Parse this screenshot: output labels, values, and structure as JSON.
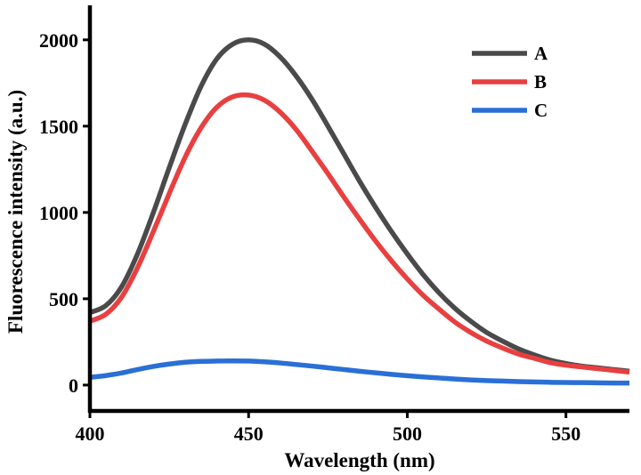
{
  "chart_data": {
    "type": "line",
    "title": "",
    "xlabel": "Wavelength (nm)",
    "ylabel": "Fluorescence intensity (a.u.)",
    "xlim": [
      400,
      570
    ],
    "ylim": [
      -150,
      2200
    ],
    "xticks": [
      400,
      450,
      500,
      550
    ],
    "yticks": [
      0,
      500,
      1000,
      1500,
      2000
    ],
    "x_tick_labels": [
      "400",
      "450",
      "500",
      "550"
    ],
    "y_tick_labels": [
      "0",
      "500",
      "1000",
      "1500",
      "2000"
    ],
    "grid": false,
    "legend_position": "top-right",
    "x": [
      400,
      405,
      410,
      415,
      420,
      425,
      430,
      435,
      440,
      445,
      450,
      455,
      460,
      465,
      470,
      475,
      480,
      485,
      490,
      495,
      500,
      505,
      510,
      515,
      520,
      525,
      530,
      535,
      540,
      545,
      550,
      555,
      560,
      565,
      570
    ],
    "series": [
      {
        "name": "A",
        "color": "#4a4a4a",
        "values": [
          420,
          460,
          570,
          760,
          1000,
          1260,
          1510,
          1730,
          1890,
          1975,
          2000,
          1975,
          1900,
          1790,
          1655,
          1500,
          1340,
          1180,
          1030,
          890,
          760,
          640,
          535,
          445,
          370,
          305,
          255,
          210,
          175,
          145,
          125,
          110,
          100,
          90,
          80
        ]
      },
      {
        "name": "B",
        "color": "#e84040",
        "values": [
          370,
          410,
          510,
          680,
          890,
          1110,
          1320,
          1490,
          1610,
          1670,
          1680,
          1650,
          1580,
          1480,
          1355,
          1225,
          1090,
          960,
          835,
          720,
          615,
          520,
          440,
          365,
          305,
          255,
          215,
          180,
          155,
          130,
          115,
          105,
          95,
          85,
          75
        ]
      },
      {
        "name": "C",
        "color": "#2a6fd6",
        "values": [
          45,
          55,
          70,
          90,
          108,
          122,
          132,
          137,
          139,
          140,
          139,
          135,
          128,
          119,
          110,
          100,
          90,
          80,
          71,
          62,
          54,
          47,
          41,
          35,
          30,
          26,
          23,
          20,
          18,
          16,
          15,
          14,
          13,
          12,
          12
        ]
      }
    ]
  }
}
